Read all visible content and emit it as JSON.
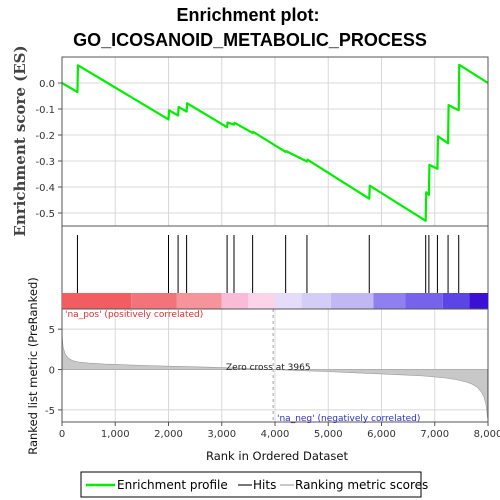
{
  "chart_data": {
    "type": "line",
    "title": "Enrichment plot:",
    "subtitle": "GO_ICOSANOID_METABOLIC_PROCESS",
    "es_ylabel": "Enrichment score (ES)",
    "metric_ylabel": "Ranked list metric (PreRanked)",
    "xlabel": "Rank in Ordered Dataset",
    "xlim": [
      0,
      8000
    ],
    "es_ylim": [
      -0.55,
      0.1
    ],
    "metric_ylim": [
      -6.5,
      7.5
    ],
    "x_ticks": [
      0,
      1000,
      2000,
      3000,
      4000,
      5000,
      6000,
      7000,
      8000
    ],
    "x_tick_labels": [
      "0",
      "1,000",
      "2,000",
      "3,000",
      "4,000",
      "5,000",
      "6,000",
      "7,000",
      "8,000"
    ],
    "es_ticks": [
      0.0,
      -0.1,
      -0.2,
      -0.3,
      -0.4,
      -0.5
    ],
    "es_tick_labels": [
      "0.0",
      "-0.1",
      "-0.2",
      "-0.3",
      "-0.4",
      "-0.5"
    ],
    "metric_ticks": [
      5,
      0,
      -5
    ],
    "metric_tick_labels": [
      "5",
      "0",
      "-5"
    ],
    "grid": true,
    "enrichment_profile": {
      "x": [
        0,
        290,
        300,
        2000,
        2010,
        2180,
        2190,
        2340,
        2350,
        3100,
        3110,
        3230,
        3240,
        3580,
        3590,
        4200,
        4210,
        4600,
        4610,
        5770,
        5780,
        6830,
        6840,
        6890,
        6900,
        7050,
        7060,
        7250,
        7260,
        7450,
        7460,
        8000
      ],
      "y": [
        0.0,
        -0.035,
        0.068,
        -0.14,
        -0.105,
        -0.125,
        -0.092,
        -0.11,
        -0.078,
        -0.17,
        -0.152,
        -0.16,
        -0.153,
        -0.192,
        -0.188,
        -0.265,
        -0.262,
        -0.302,
        -0.295,
        -0.445,
        -0.395,
        -0.53,
        -0.42,
        -0.43,
        -0.315,
        -0.33,
        -0.205,
        -0.232,
        -0.085,
        -0.105,
        0.07,
        0.0
      ]
    },
    "hits": [
      290,
      2000,
      2180,
      2340,
      3100,
      3230,
      3580,
      4200,
      4600,
      5770,
      6830,
      6890,
      7050,
      7250,
      7450
    ],
    "zero_cross": 3965,
    "zero_cross_label": "Zero cross at 3965",
    "pos_label": "'na_pos' (positively correlated)",
    "neg_label": "'na_neg' (negatively correlated)",
    "ranking_metric_profile": {
      "x": [
        0,
        20,
        60,
        120,
        200,
        300,
        500,
        800,
        1200,
        1600,
        2000,
        2500,
        3000,
        3500,
        3965,
        4500,
        5000,
        5500,
        6000,
        6500,
        6800,
        7000,
        7200,
        7400,
        7600,
        7700,
        7800,
        7880,
        7930,
        7960,
        7980,
        7990
      ],
      "y": [
        4.5,
        2.8,
        1.9,
        1.4,
        1.1,
        0.95,
        0.8,
        0.68,
        0.58,
        0.5,
        0.42,
        0.34,
        0.24,
        0.12,
        0.0,
        -0.14,
        -0.26,
        -0.4,
        -0.54,
        -0.7,
        -0.8,
        -0.92,
        -1.05,
        -1.25,
        -1.55,
        -1.8,
        -2.2,
        -2.8,
        -3.5,
        -4.3,
        -5.2,
        -6.0
      ]
    },
    "colorbar": [
      {
        "from": 0,
        "to": 1300,
        "color": "#f25d62"
      },
      {
        "from": 1300,
        "to": 2150,
        "color": "#f3737b"
      },
      {
        "from": 2150,
        "to": 3000,
        "color": "#f6949c"
      },
      {
        "from": 3000,
        "to": 3500,
        "color": "#f9bcd6"
      },
      {
        "from": 3500,
        "to": 4000,
        "color": "#fbd4ea"
      },
      {
        "from": 4000,
        "to": 4500,
        "color": "#e4dcf8"
      },
      {
        "from": 4500,
        "to": 5050,
        "color": "#d4cef6"
      },
      {
        "from": 5050,
        "to": 5850,
        "color": "#c1b8f3"
      },
      {
        "from": 5850,
        "to": 6450,
        "color": "#8f7ff0"
      },
      {
        "from": 6450,
        "to": 7150,
        "color": "#7563ec"
      },
      {
        "from": 7150,
        "to": 7650,
        "color": "#5b45e6"
      },
      {
        "from": 7650,
        "to": 8000,
        "color": "#3b10d4"
      }
    ],
    "colors": {
      "profile": "#00ee00",
      "hits": "#000000",
      "metric": "#c8c8c8",
      "grid": "#d8d8d8",
      "pos_text": "#e03030",
      "neg_text": "#2d2dd6",
      "zero_line": "#a0a0a0"
    },
    "legend": {
      "placement": "bottom",
      "items": [
        "Enrichment profile",
        "Hits",
        "Ranking metric scores"
      ]
    }
  }
}
